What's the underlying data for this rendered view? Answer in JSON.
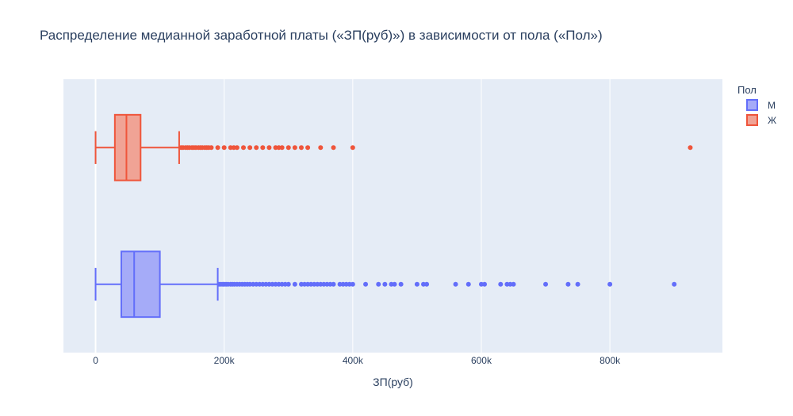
{
  "chart_data": {
    "type": "box",
    "title": "Распределение медианной заработной платы («ЗП(руб)») в зависимости от пола («Пол»)",
    "xlabel": "ЗП(руб)",
    "ylabel": "",
    "xlim": [
      -50000,
      975000
    ],
    "x_ticks": [
      0,
      200000,
      400000,
      600000,
      800000
    ],
    "x_tick_labels": [
      "0",
      "200k",
      "400k",
      "600k",
      "800k"
    ],
    "grid": true,
    "orientation": "horizontal",
    "legend": {
      "title": "Пол",
      "placement": "top-right"
    },
    "series": [
      {
        "name": "М",
        "color": "#636efa",
        "fill": "#a5abf8",
        "min": 0,
        "q1": 40000,
        "median": 60000,
        "q3": 100000,
        "whisker_high": 190000,
        "outliers": [
          192000,
          195000,
          198000,
          200000,
          203000,
          206000,
          210000,
          213000,
          216000,
          220000,
          224000,
          228000,
          232000,
          236000,
          240000,
          245000,
          250000,
          255000,
          260000,
          265000,
          270000,
          275000,
          280000,
          285000,
          290000,
          295000,
          300000,
          310000,
          320000,
          325000,
          330000,
          335000,
          340000,
          345000,
          350000,
          355000,
          360000,
          365000,
          370000,
          380000,
          385000,
          390000,
          395000,
          400000,
          420000,
          440000,
          450000,
          460000,
          465000,
          475000,
          500000,
          510000,
          515000,
          560000,
          580000,
          600000,
          605000,
          630000,
          640000,
          645000,
          650000,
          700000,
          735000,
          750000,
          800000,
          900000
        ]
      },
      {
        "name": "Ж",
        "color": "#ef553b",
        "fill": "#f0a395",
        "min": 0,
        "q1": 30000,
        "median": 48000,
        "q3": 70000,
        "whisker_high": 130000,
        "outliers": [
          133000,
          136000,
          140000,
          143000,
          146000,
          150000,
          153000,
          156000,
          160000,
          163000,
          166000,
          170000,
          173000,
          176000,
          180000,
          190000,
          200000,
          210000,
          215000,
          220000,
          230000,
          240000,
          250000,
          260000,
          270000,
          280000,
          285000,
          290000,
          300000,
          310000,
          320000,
          330000,
          350000,
          370000,
          400000,
          925000
        ]
      }
    ]
  }
}
